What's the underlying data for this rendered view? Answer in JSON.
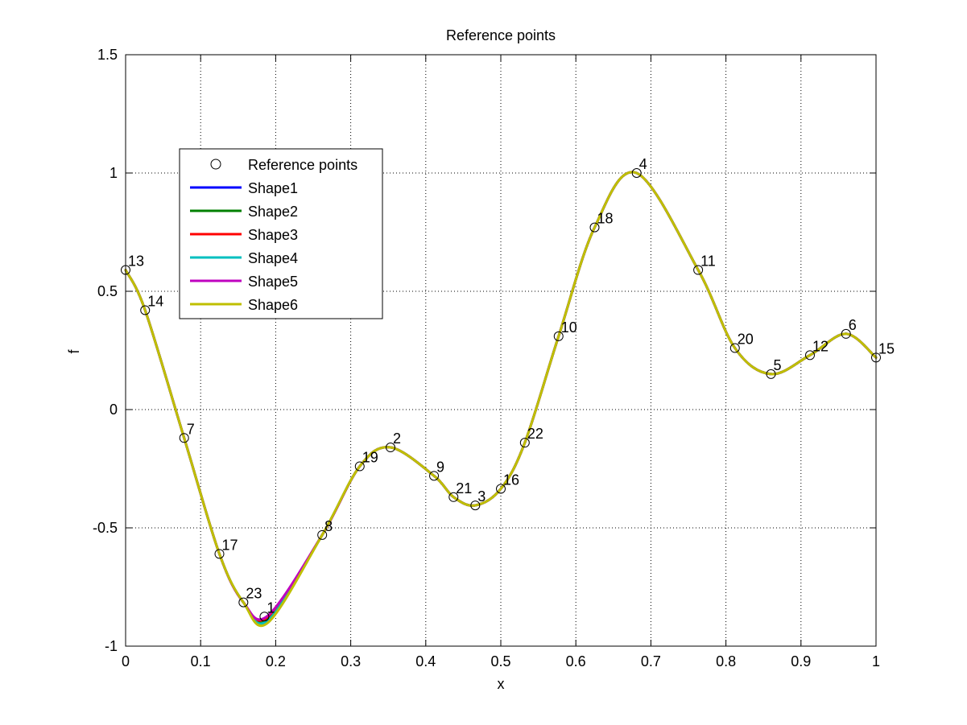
{
  "chart_data": {
    "type": "line",
    "title": "Reference points",
    "xlabel": "x",
    "ylabel": "f",
    "xlim": [
      0,
      1
    ],
    "ylim": [
      -1,
      1.5
    ],
    "xticks": [
      "0",
      "0.1",
      "0.2",
      "0.3",
      "0.4",
      "0.5",
      "0.6",
      "0.7",
      "0.8",
      "0.9",
      "1"
    ],
    "yticks": [
      "-1",
      "-0.5",
      "0",
      "0.5",
      "1",
      "1.5"
    ],
    "grid": true,
    "legend_position": "upper-left",
    "reference_points": {
      "name": "Reference points",
      "points": [
        {
          "label": "13",
          "x": 0.0,
          "y": 0.59
        },
        {
          "label": "14",
          "x": 0.026,
          "y": 0.42
        },
        {
          "label": "7",
          "x": 0.078,
          "y": -0.12
        },
        {
          "label": "17",
          "x": 0.125,
          "y": -0.61
        },
        {
          "label": "23",
          "x": 0.157,
          "y": -0.815
        },
        {
          "label": "1",
          "x": 0.185,
          "y": -0.875
        },
        {
          "label": "8",
          "x": 0.262,
          "y": -0.53
        },
        {
          "label": "19",
          "x": 0.312,
          "y": -0.24
        },
        {
          "label": "2",
          "x": 0.353,
          "y": -0.16
        },
        {
          "label": "9",
          "x": 0.411,
          "y": -0.28
        },
        {
          "label": "21",
          "x": 0.437,
          "y": -0.37
        },
        {
          "label": "3",
          "x": 0.466,
          "y": -0.405
        },
        {
          "label": "16",
          "x": 0.5,
          "y": -0.335
        },
        {
          "label": "22",
          "x": 0.532,
          "y": -0.14
        },
        {
          "label": "10",
          "x": 0.577,
          "y": 0.31
        },
        {
          "label": "18",
          "x": 0.625,
          "y": 0.77
        },
        {
          "label": "4",
          "x": 0.681,
          "y": 1.0
        },
        {
          "label": "11",
          "x": 0.763,
          "y": 0.59
        },
        {
          "label": "20",
          "x": 0.812,
          "y": 0.26
        },
        {
          "label": "5",
          "x": 0.86,
          "y": 0.15
        },
        {
          "label": "12",
          "x": 0.912,
          "y": 0.23
        },
        {
          "label": "6",
          "x": 0.96,
          "y": 0.32
        },
        {
          "label": "15",
          "x": 1.0,
          "y": 0.22
        }
      ]
    },
    "series": [
      {
        "name": "Shape1",
        "color": "#0000ff",
        "min_depth": -0.88
      },
      {
        "name": "Shape2",
        "color": "#008000",
        "min_depth": -0.885
      },
      {
        "name": "Shape3",
        "color": "#ff0000",
        "min_depth": -0.875
      },
      {
        "name": "Shape4",
        "color": "#00bfbf",
        "min_depth": -0.89
      },
      {
        "name": "Shape5",
        "color": "#bf00bf",
        "min_depth": -0.87
      },
      {
        "name": "Shape6",
        "color": "#bfbf00",
        "min_depth": -0.9
      }
    ]
  }
}
